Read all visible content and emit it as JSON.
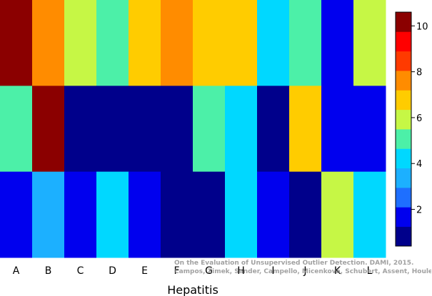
{
  "chart_data": {
    "type": "heatmap",
    "title": "",
    "xlabel": "Hepatitis",
    "ylabel": "",
    "categories": [
      "A",
      "B",
      "C",
      "D",
      "E",
      "F",
      "G",
      "H",
      "I",
      "J",
      "K",
      "L"
    ],
    "row_count": 3,
    "rows": [
      [
        10.5,
        8,
        6,
        5,
        7,
        8,
        7,
        7,
        4,
        5,
        2,
        6
      ],
      [
        5,
        10.5,
        1,
        1,
        1,
        1,
        5,
        4,
        1,
        7,
        2,
        2
      ],
      [
        2,
        3,
        2,
        4,
        2,
        1,
        1,
        4,
        2,
        1,
        6,
        4
      ]
    ],
    "colorbar": {
      "range": [
        0.4,
        10.6
      ],
      "ticks": [
        2,
        4,
        6,
        8,
        10
      ],
      "levels": [
        {
          "from": 0.4,
          "to": 1.25,
          "color": "#00008b"
        },
        {
          "from": 1.25,
          "to": 2.1,
          "color": "#0000ee"
        },
        {
          "from": 2.1,
          "to": 2.95,
          "color": "#1e6fff"
        },
        {
          "from": 2.95,
          "to": 3.8,
          "color": "#1cb0ff"
        },
        {
          "from": 3.8,
          "to": 4.65,
          "color": "#00d8ff"
        },
        {
          "from": 4.65,
          "to": 5.5,
          "color": "#4cf0a8"
        },
        {
          "from": 5.5,
          "to": 6.35,
          "color": "#c6f745"
        },
        {
          "from": 6.35,
          "to": 7.2,
          "color": "#ffcc00"
        },
        {
          "from": 7.2,
          "to": 8.05,
          "color": "#ff8c00"
        },
        {
          "from": 8.05,
          "to": 8.9,
          "color": "#ff3a00"
        },
        {
          "from": 8.9,
          "to": 9.75,
          "color": "#ff0000"
        },
        {
          "from": 9.75,
          "to": 10.6,
          "color": "#8b0000"
        }
      ]
    },
    "grid": false,
    "legend": "right colorbar"
  },
  "watermark": {
    "line1": "On the Evaluation of Unsupervised Outlier Detection. DAMI, 2015.",
    "line2": "Campos, Zimek, Sander, Campello, Micenková, Schubert, Assent, Houle"
  }
}
